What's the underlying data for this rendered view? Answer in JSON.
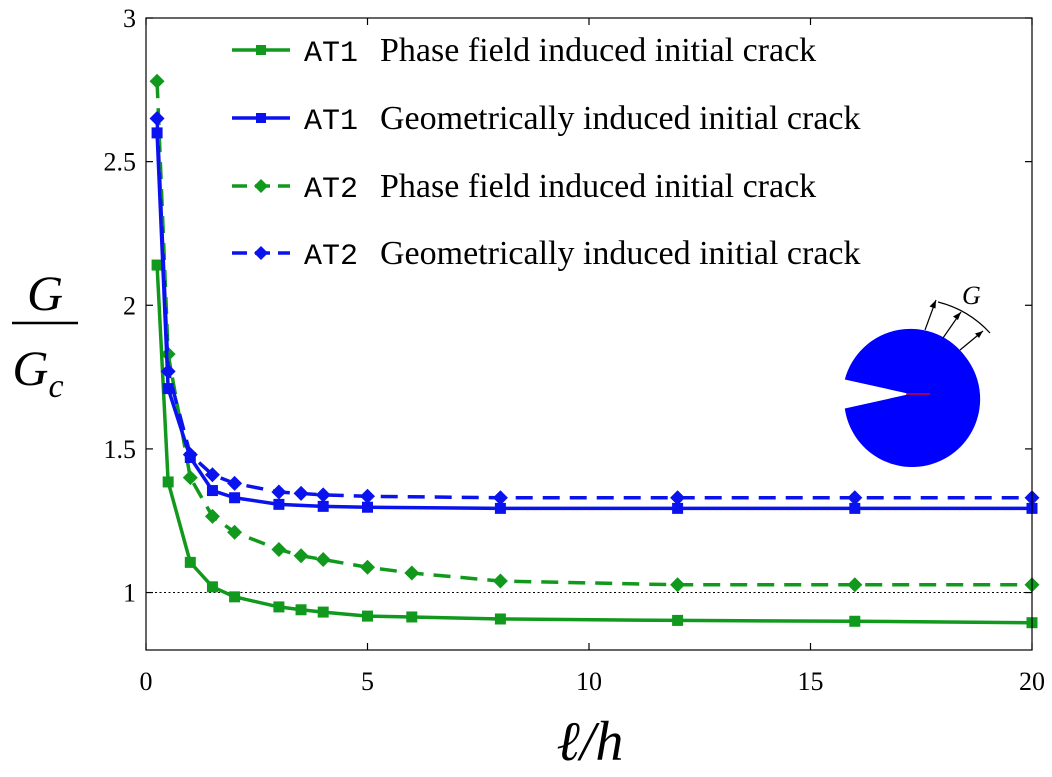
{
  "chart_data": {
    "type": "line",
    "xlabel": "ℓ/h",
    "ylabel": {
      "numerator": "G",
      "denominator": "G",
      "subscript": "c"
    },
    "xlim": [
      0,
      20
    ],
    "ylim": [
      0.8,
      3
    ],
    "xticks": [
      0,
      5,
      10,
      15,
      20
    ],
    "xtick_labels": [
      "0",
      "5",
      "10",
      "15",
      "20"
    ],
    "yticks": [
      1,
      1.5,
      2,
      2.5,
      3
    ],
    "ytick_labels": [
      "1",
      "1.5",
      "2",
      "2.5",
      "3"
    ],
    "grid": false,
    "legend_position": "top-right",
    "reference_line": {
      "y": 1,
      "style": "dotted"
    },
    "series": [
      {
        "code": "AT1",
        "name": "Phase field induced initial crack",
        "color": "#11991d",
        "line_style": "solid",
        "marker": "square",
        "x": [
          0.25,
          0.5,
          1,
          1.5,
          2,
          3,
          3.5,
          4,
          5,
          6,
          8,
          12,
          16,
          20
        ],
        "y": [
          2.14,
          1.385,
          1.105,
          1.02,
          0.985,
          0.95,
          0.94,
          0.932,
          0.918,
          0.915,
          0.908,
          0.903,
          0.9,
          0.895
        ]
      },
      {
        "code": "AT1",
        "name": "Geometrically induced initial crack",
        "color": "#0a12ee",
        "line_style": "solid",
        "marker": "square",
        "x": [
          0.25,
          0.5,
          1,
          1.5,
          2,
          3,
          4,
          5,
          8,
          12,
          16,
          20
        ],
        "y": [
          2.6,
          1.71,
          1.47,
          1.355,
          1.33,
          1.307,
          1.3,
          1.297,
          1.293,
          1.293,
          1.293,
          1.293
        ]
      },
      {
        "code": "AT2",
        "name": "Phase field induced initial crack",
        "color": "#11991d",
        "line_style": "dashed",
        "marker": "diamond",
        "x": [
          0.25,
          0.5,
          1,
          1.5,
          2,
          3,
          3.5,
          4,
          5,
          6,
          8,
          12,
          16,
          20
        ],
        "y": [
          2.78,
          1.83,
          1.4,
          1.265,
          1.21,
          1.15,
          1.128,
          1.115,
          1.088,
          1.068,
          1.04,
          1.027,
          1.027,
          1.027
        ]
      },
      {
        "code": "AT2",
        "name": "Geometrically induced initial crack",
        "color": "#0a12ee",
        "line_style": "dashed",
        "marker": "diamond",
        "x": [
          0.25,
          0.5,
          1,
          1.5,
          2,
          3,
          3.5,
          4,
          5,
          8,
          12,
          16,
          20
        ],
        "y": [
          2.65,
          1.77,
          1.48,
          1.41,
          1.38,
          1.35,
          1.345,
          1.34,
          1.335,
          1.33,
          1.33,
          1.33,
          1.33
        ]
      }
    ],
    "inset": {
      "label": "G",
      "shape": "cracked-disk",
      "fill_color": "#0000ff",
      "crack_color": "#ff0000"
    }
  }
}
